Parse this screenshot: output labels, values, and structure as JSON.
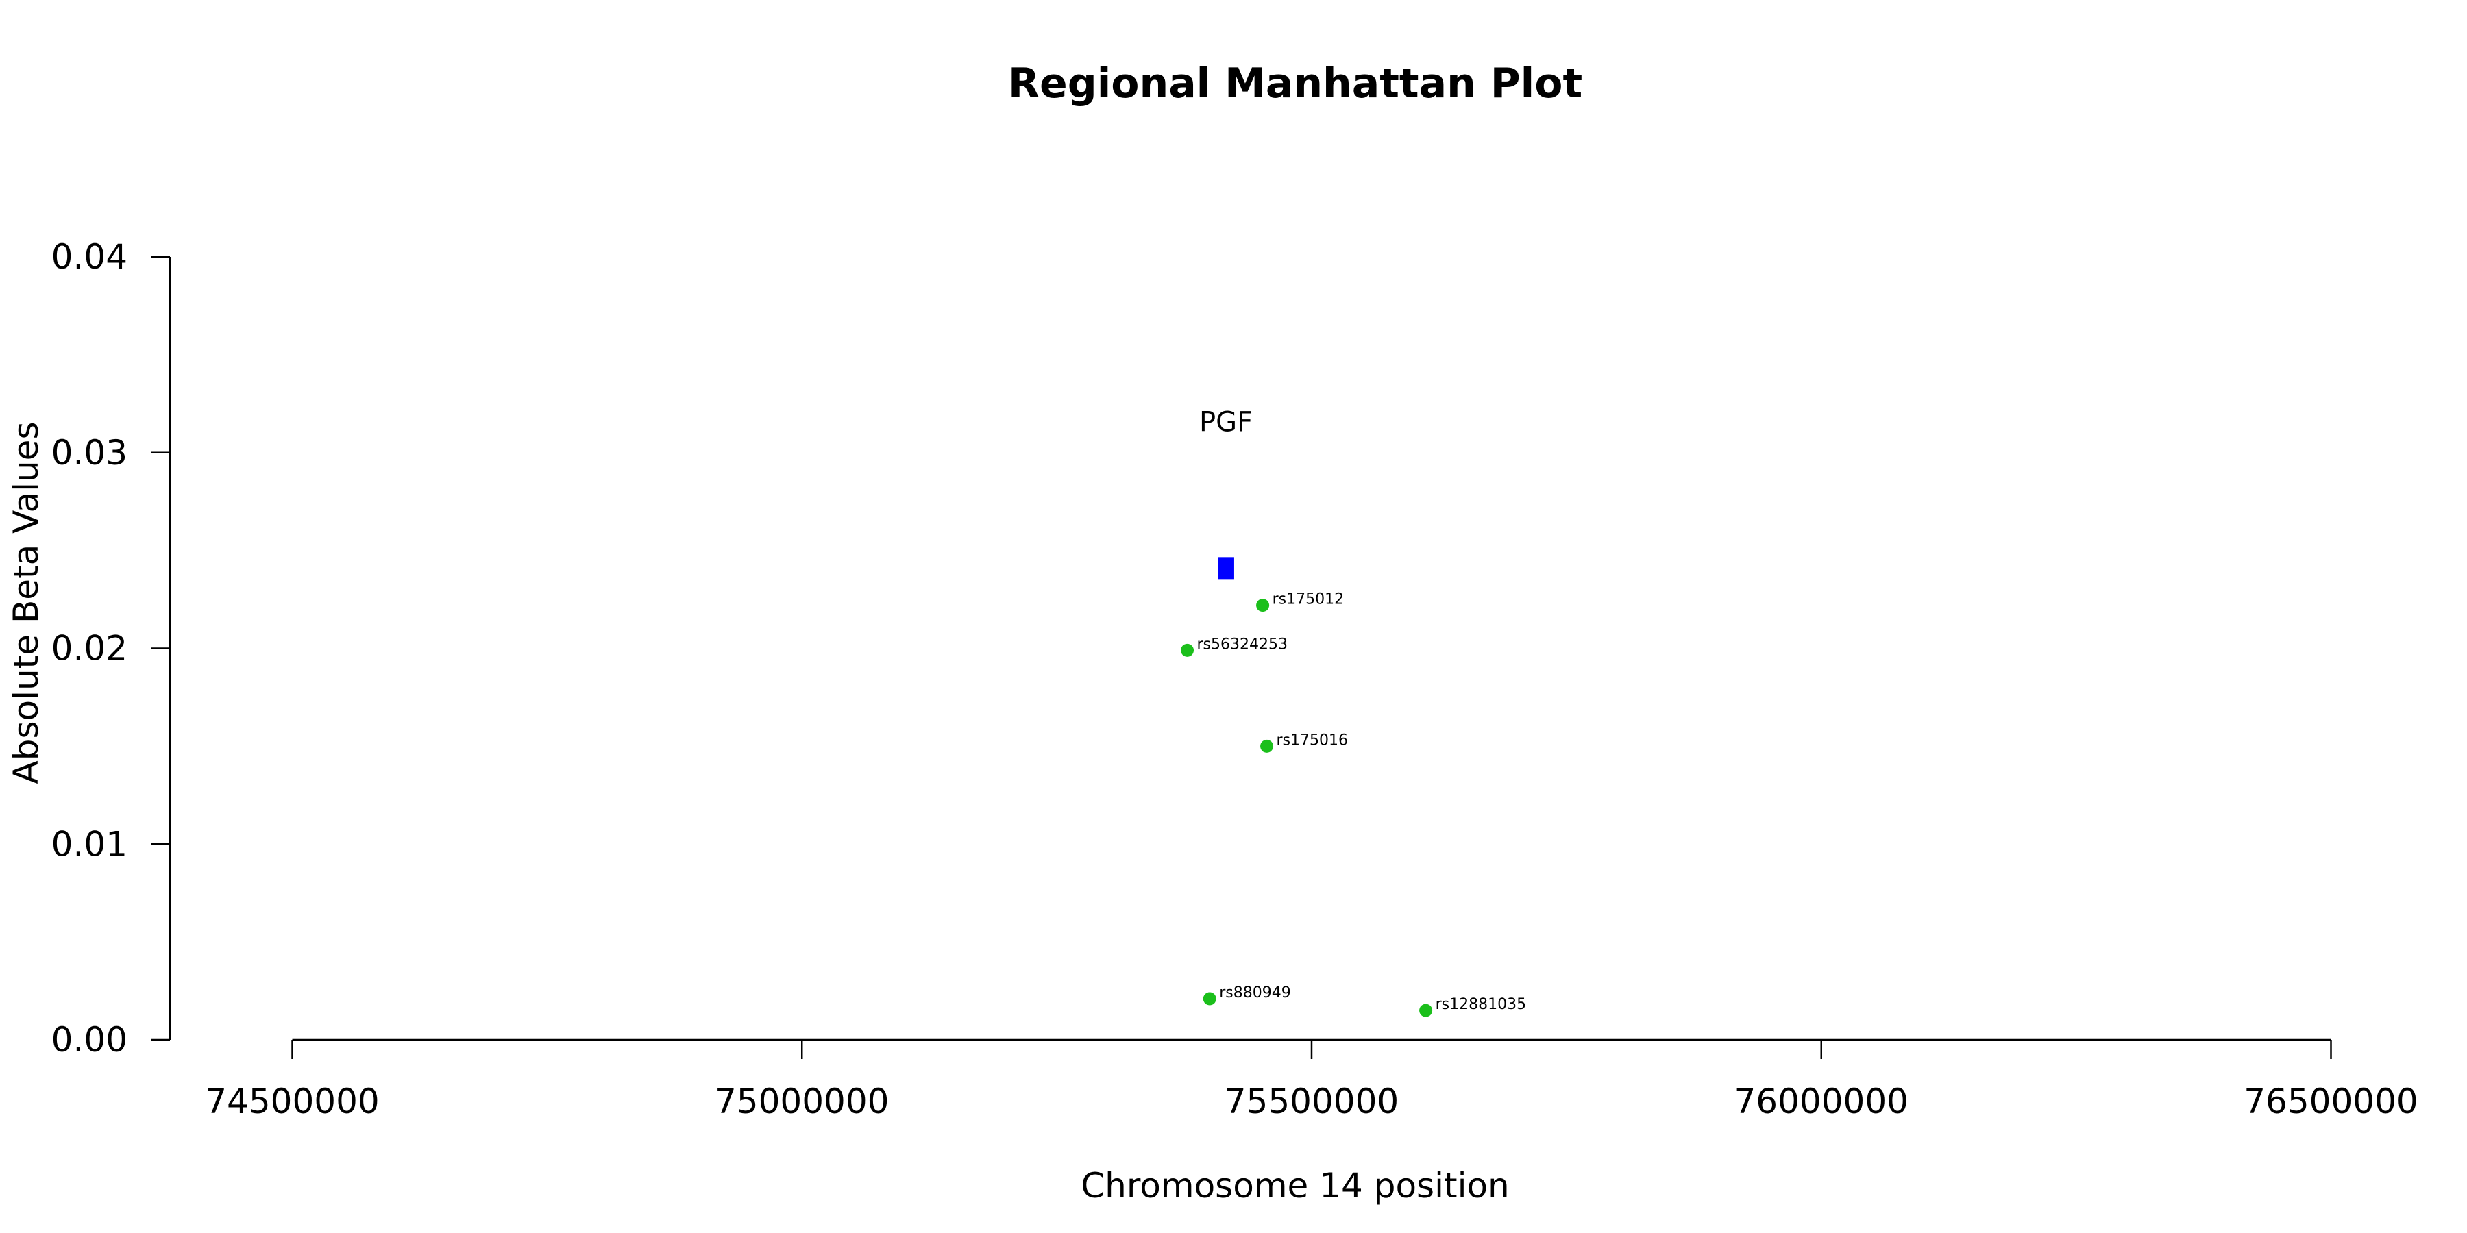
{
  "chart_data": {
    "type": "scatter",
    "title": "Regional Manhattan Plot",
    "xlabel": "Chromosome 14 position",
    "ylabel": "Absolute Beta Values",
    "xlim": [
      74380000,
      76620000
    ],
    "ylim": [
      0,
      0.04
    ],
    "x_ticks": [
      74500000,
      75000000,
      75500000,
      76000000,
      76500000
    ],
    "x_tick_labels": [
      "74500000",
      "75000000",
      "75500000",
      "76000000",
      "76500000"
    ],
    "y_ticks": [
      0,
      0.01,
      0.02,
      0.03,
      0.04
    ],
    "y_tick_labels": [
      "0.00",
      "0.01",
      "0.02",
      "0.03",
      "0.04"
    ],
    "grid": false,
    "point_color": "#1bbf1b",
    "points": [
      {
        "label": "rs175012",
        "x": 75452000,
        "y": 0.0222
      },
      {
        "label": "rs56324253",
        "x": 75378000,
        "y": 0.0199
      },
      {
        "label": "rs175016",
        "x": 75456000,
        "y": 0.015
      },
      {
        "label": "rs880949",
        "x": 75400000,
        "y": 0.0021
      },
      {
        "label": "rs12881035",
        "x": 75612000,
        "y": 0.0015
      }
    ],
    "gene": {
      "name": "PGF",
      "x_start": 75408000,
      "x_end": 75424000,
      "y": 0.0241,
      "color": "#0000ff"
    }
  }
}
